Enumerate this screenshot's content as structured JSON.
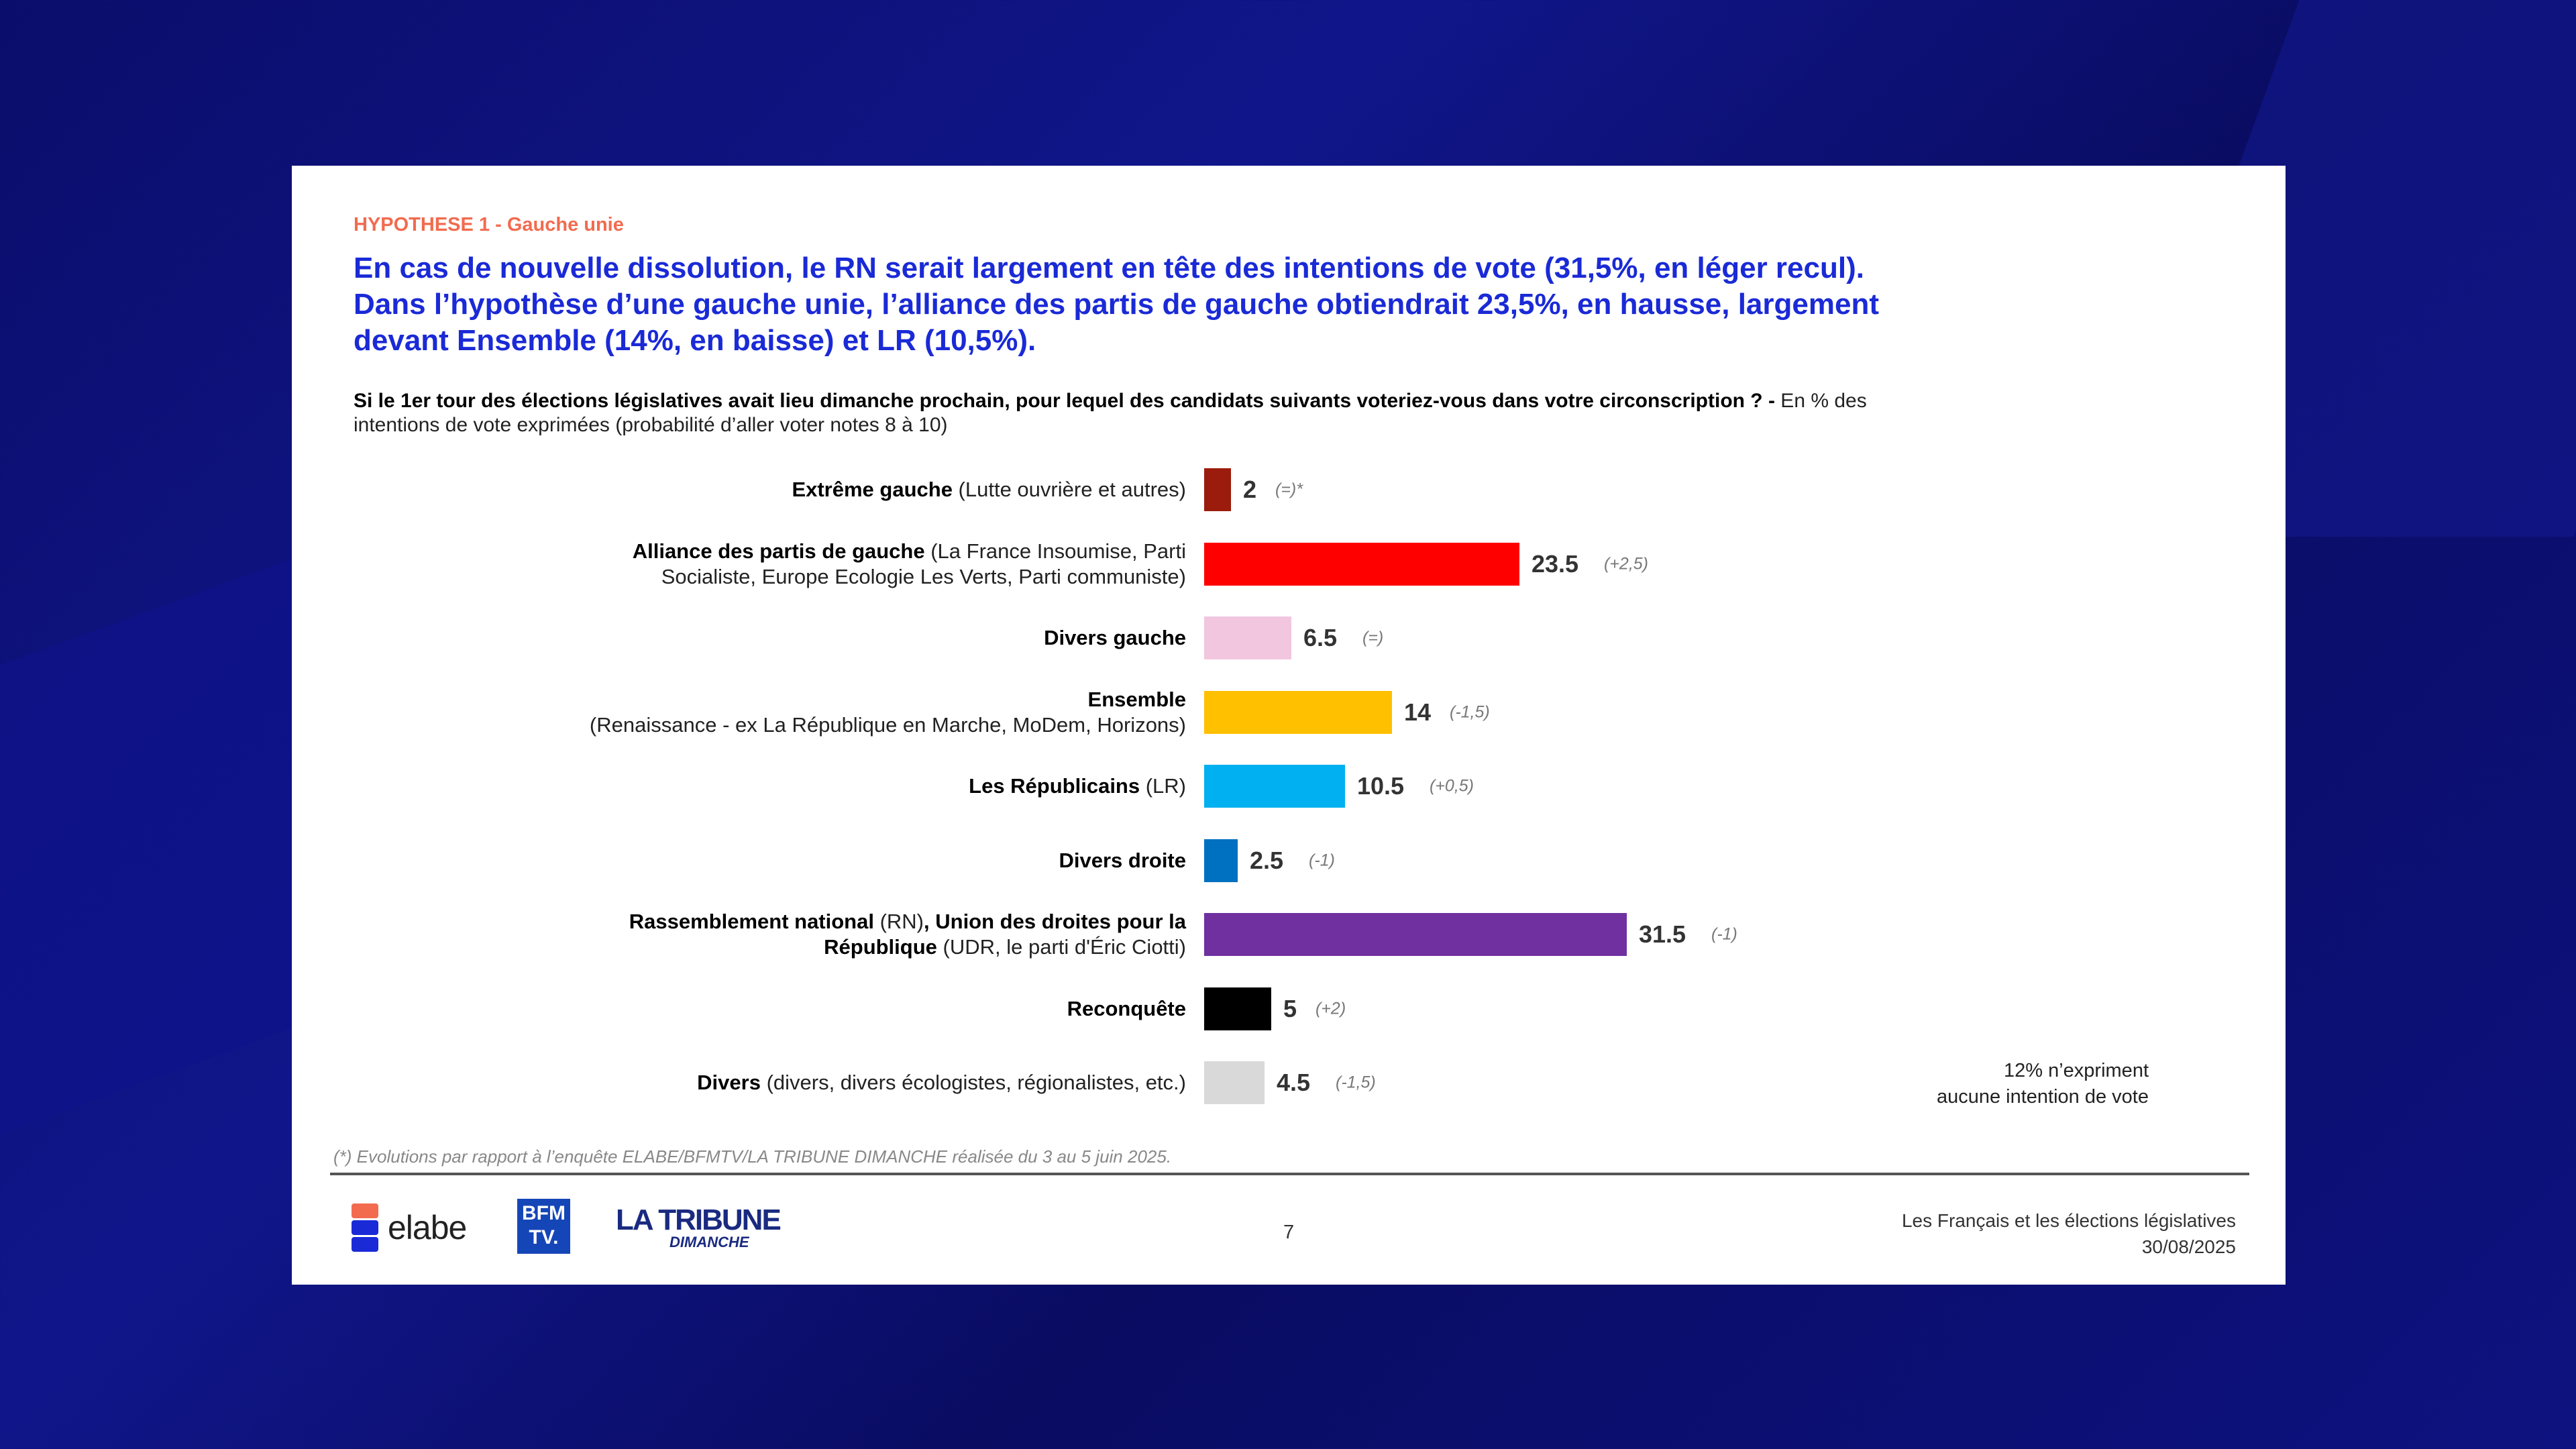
{
  "slide": {
    "hypothesis": "HYPOTHESE 1 -  Gauche unie",
    "title_lines": [
      "En cas de nouvelle dissolution, le RN serait largement en tête des intentions de vote (31,5%, en léger recul).",
      "Dans l’hypothèse d’une gauche unie, l’alliance des partis de gauche obtiendrait 23,5%, en hausse, largement",
      "devant Ensemble (14%, en baisse) et LR (10,5%)."
    ],
    "question": {
      "bold": "Si le 1er tour des élections législatives avait lieu dimanche prochain, pour lequel des candidats suivants voteriez-vous dans votre circonscription ? -",
      "normal_1": " En % des",
      "normal_2": "intentions de vote exprimées (probabilité d’aller voter notes 8 à 10)"
    },
    "no_expression": [
      "12% n’expriment",
      "aucune intention de vote"
    ],
    "footnote": "(*) Evolutions par rapport à l’enquête ELABE/BFMTV/LA TRIBUNE DIMANCHE réalisée du 3 au 5 juin 2025.",
    "page_number": "7",
    "footer_title": "Les Français et les élections législatives",
    "footer_date": "30/08/2025",
    "logos": {
      "elabe": "elabe",
      "bfm": [
        "BFM",
        "TV."
      ],
      "tribune": [
        "LA TRIBUNE",
        "DIMANCHE"
      ]
    }
  },
  "chart_data": {
    "type": "bar",
    "orientation": "horizontal",
    "unit": "%",
    "categories": [
      {
        "bold": "Extrême gauche",
        "detail": " (Lutte ouvrière et autres)",
        "lines": 1
      },
      {
        "bold": "Alliance des partis de gauche",
        "detail": " (La France Insoumise, Parti",
        "detail2": "Socialiste, Europe Ecologie Les Verts, Parti communiste)",
        "lines": 2
      },
      {
        "bold": "Divers gauche",
        "detail": "",
        "lines": 1
      },
      {
        "bold": "Ensemble",
        "detail": "",
        "detail2": "(Renaissance - ex La République en Marche, MoDem, Horizons)",
        "lines": 2
      },
      {
        "bold": "Les Républicains",
        "detail": " (LR)",
        "lines": 1
      },
      {
        "bold": "Divers droite",
        "detail": "",
        "lines": 1
      },
      {
        "bold": "Rassemblement national",
        "detail": " (RN)",
        "bold2": ", Union des droites pour la",
        "bold3": "République",
        "detail3": " (UDR, le parti d'Éric Ciotti)",
        "lines": 2
      },
      {
        "bold": "Reconquête",
        "detail": "",
        "lines": 1
      },
      {
        "bold": "Divers",
        "detail": " (divers, divers écologistes, régionalistes, etc.)",
        "lines": 1
      }
    ],
    "values": [
      2,
      23.5,
      6.5,
      14,
      10.5,
      2.5,
      31.5,
      5,
      4.5
    ],
    "value_labels": [
      "2",
      "23.5",
      "6.5",
      "14",
      "10.5",
      "2.5",
      "31.5",
      "5",
      "4.5"
    ],
    "changes": [
      "(=)*",
      "(+2,5)",
      "(=)",
      "(-1,5)",
      "(+0,5)",
      "(-1)",
      "(-1)",
      "(+2)",
      "(-1,5)"
    ],
    "colors": [
      "#9b1c0c",
      "#ff0000",
      "#f2c6df",
      "#ffc000",
      "#00b0f0",
      "#0070c0",
      "#7030a0",
      "#000000",
      "#d9d9d9"
    ]
  }
}
